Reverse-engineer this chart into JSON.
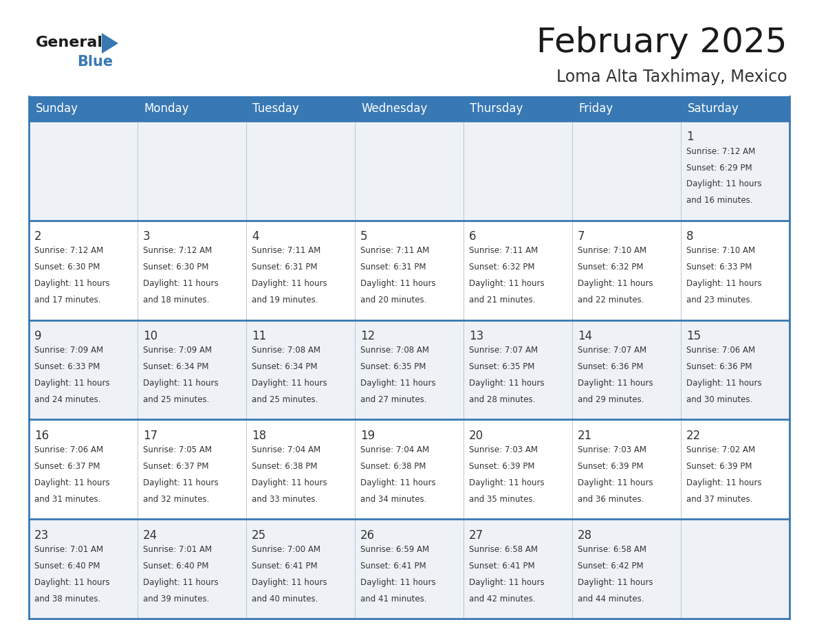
{
  "title": "February 2025",
  "subtitle": "Loma Alta Taxhimay, Mexico",
  "days_of_week": [
    "Sunday",
    "Monday",
    "Tuesday",
    "Wednesday",
    "Thursday",
    "Friday",
    "Saturday"
  ],
  "header_bg": "#3878b4",
  "header_text": "#ffffff",
  "cell_bg_light": "#eef2f7",
  "cell_bg_white": "#ffffff",
  "cell_border": "#3878b4",
  "cell_border_light": "#b0c4d8",
  "day_num_color": "#333333",
  "text_color": "#333333",
  "title_color": "#1a1a1a",
  "subtitle_color": "#333333",
  "calendar": [
    [
      null,
      null,
      null,
      null,
      null,
      null,
      {
        "day": 1,
        "sunrise": "7:12 AM",
        "sunset": "6:29 PM",
        "daylight": "11 hours and 16 minutes."
      }
    ],
    [
      {
        "day": 2,
        "sunrise": "7:12 AM",
        "sunset": "6:30 PM",
        "daylight": "11 hours and 17 minutes."
      },
      {
        "day": 3,
        "sunrise": "7:12 AM",
        "sunset": "6:30 PM",
        "daylight": "11 hours and 18 minutes."
      },
      {
        "day": 4,
        "sunrise": "7:11 AM",
        "sunset": "6:31 PM",
        "daylight": "11 hours and 19 minutes."
      },
      {
        "day": 5,
        "sunrise": "7:11 AM",
        "sunset": "6:31 PM",
        "daylight": "11 hours and 20 minutes."
      },
      {
        "day": 6,
        "sunrise": "7:11 AM",
        "sunset": "6:32 PM",
        "daylight": "11 hours and 21 minutes."
      },
      {
        "day": 7,
        "sunrise": "7:10 AM",
        "sunset": "6:32 PM",
        "daylight": "11 hours and 22 minutes."
      },
      {
        "day": 8,
        "sunrise": "7:10 AM",
        "sunset": "6:33 PM",
        "daylight": "11 hours and 23 minutes."
      }
    ],
    [
      {
        "day": 9,
        "sunrise": "7:09 AM",
        "sunset": "6:33 PM",
        "daylight": "11 hours and 24 minutes."
      },
      {
        "day": 10,
        "sunrise": "7:09 AM",
        "sunset": "6:34 PM",
        "daylight": "11 hours and 25 minutes."
      },
      {
        "day": 11,
        "sunrise": "7:08 AM",
        "sunset": "6:34 PM",
        "daylight": "11 hours and 25 minutes."
      },
      {
        "day": 12,
        "sunrise": "7:08 AM",
        "sunset": "6:35 PM",
        "daylight": "11 hours and 27 minutes."
      },
      {
        "day": 13,
        "sunrise": "7:07 AM",
        "sunset": "6:35 PM",
        "daylight": "11 hours and 28 minutes."
      },
      {
        "day": 14,
        "sunrise": "7:07 AM",
        "sunset": "6:36 PM",
        "daylight": "11 hours and 29 minutes."
      },
      {
        "day": 15,
        "sunrise": "7:06 AM",
        "sunset": "6:36 PM",
        "daylight": "11 hours and 30 minutes."
      }
    ],
    [
      {
        "day": 16,
        "sunrise": "7:06 AM",
        "sunset": "6:37 PM",
        "daylight": "11 hours and 31 minutes."
      },
      {
        "day": 17,
        "sunrise": "7:05 AM",
        "sunset": "6:37 PM",
        "daylight": "11 hours and 32 minutes."
      },
      {
        "day": 18,
        "sunrise": "7:04 AM",
        "sunset": "6:38 PM",
        "daylight": "11 hours and 33 minutes."
      },
      {
        "day": 19,
        "sunrise": "7:04 AM",
        "sunset": "6:38 PM",
        "daylight": "11 hours and 34 minutes."
      },
      {
        "day": 20,
        "sunrise": "7:03 AM",
        "sunset": "6:39 PM",
        "daylight": "11 hours and 35 minutes."
      },
      {
        "day": 21,
        "sunrise": "7:03 AM",
        "sunset": "6:39 PM",
        "daylight": "11 hours and 36 minutes."
      },
      {
        "day": 22,
        "sunrise": "7:02 AM",
        "sunset": "6:39 PM",
        "daylight": "11 hours and 37 minutes."
      }
    ],
    [
      {
        "day": 23,
        "sunrise": "7:01 AM",
        "sunset": "6:40 PM",
        "daylight": "11 hours and 38 minutes."
      },
      {
        "day": 24,
        "sunrise": "7:01 AM",
        "sunset": "6:40 PM",
        "daylight": "11 hours and 39 minutes."
      },
      {
        "day": 25,
        "sunrise": "7:00 AM",
        "sunset": "6:41 PM",
        "daylight": "11 hours and 40 minutes."
      },
      {
        "day": 26,
        "sunrise": "6:59 AM",
        "sunset": "6:41 PM",
        "daylight": "11 hours and 41 minutes."
      },
      {
        "day": 27,
        "sunrise": "6:58 AM",
        "sunset": "6:41 PM",
        "daylight": "11 hours and 42 minutes."
      },
      {
        "day": 28,
        "sunrise": "6:58 AM",
        "sunset": "6:42 PM",
        "daylight": "11 hours and 44 minutes."
      },
      null
    ]
  ]
}
